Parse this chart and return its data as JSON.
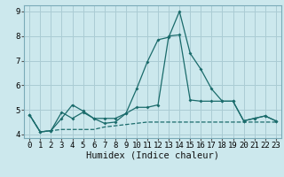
{
  "xlabel": "Humidex (Indice chaleur)",
  "bg_color": "#cce8ed",
  "grid_color": "#aaccd4",
  "line_color": "#1a6b6b",
  "marker_color": "#1a6b6b",
  "xlim": [
    -0.5,
    23.5
  ],
  "ylim": [
    3.85,
    9.25
  ],
  "xticks": [
    0,
    1,
    2,
    3,
    4,
    5,
    6,
    7,
    8,
    9,
    10,
    11,
    12,
    13,
    14,
    15,
    16,
    17,
    18,
    19,
    20,
    21,
    22,
    23
  ],
  "yticks": [
    4,
    5,
    6,
    7,
    8,
    9
  ],
  "series1_x": [
    0,
    1,
    2,
    3,
    4,
    5,
    6,
    7,
    8,
    9,
    10,
    11,
    12,
    13,
    14,
    15,
    16,
    17,
    18,
    19,
    20,
    21,
    22,
    23
  ],
  "series1_y": [
    4.8,
    4.1,
    4.15,
    4.2,
    4.2,
    4.2,
    4.2,
    4.3,
    4.35,
    4.4,
    4.45,
    4.5,
    4.5,
    4.5,
    4.5,
    4.5,
    4.5,
    4.5,
    4.5,
    4.5,
    4.5,
    4.5,
    4.5,
    4.5
  ],
  "series2_x": [
    0,
    1,
    2,
    3,
    4,
    5,
    6,
    7,
    8,
    9,
    10,
    11,
    12,
    13,
    14,
    15,
    16,
    17,
    18,
    19,
    20,
    21,
    22,
    23
  ],
  "series2_y": [
    4.8,
    4.1,
    4.15,
    4.65,
    5.2,
    4.95,
    4.65,
    4.65,
    4.65,
    4.85,
    5.85,
    6.95,
    7.85,
    7.95,
    9.0,
    7.3,
    6.65,
    5.85,
    5.35,
    5.35,
    4.55,
    4.65,
    4.75,
    4.55
  ],
  "series3_x": [
    0,
    1,
    2,
    3,
    4,
    5,
    6,
    7,
    8,
    9,
    10,
    11,
    12,
    13,
    14,
    15,
    16,
    17,
    18,
    19,
    20,
    21,
    22,
    23
  ],
  "series3_y": [
    4.8,
    4.1,
    4.15,
    4.9,
    4.65,
    4.9,
    4.65,
    4.45,
    4.5,
    4.85,
    5.1,
    5.1,
    5.2,
    8.0,
    8.05,
    5.4,
    5.35,
    5.35,
    5.35,
    5.35,
    4.55,
    4.65,
    4.75,
    4.55
  ],
  "xlabel_fontsize": 7.5,
  "tick_fontsize": 6.5
}
